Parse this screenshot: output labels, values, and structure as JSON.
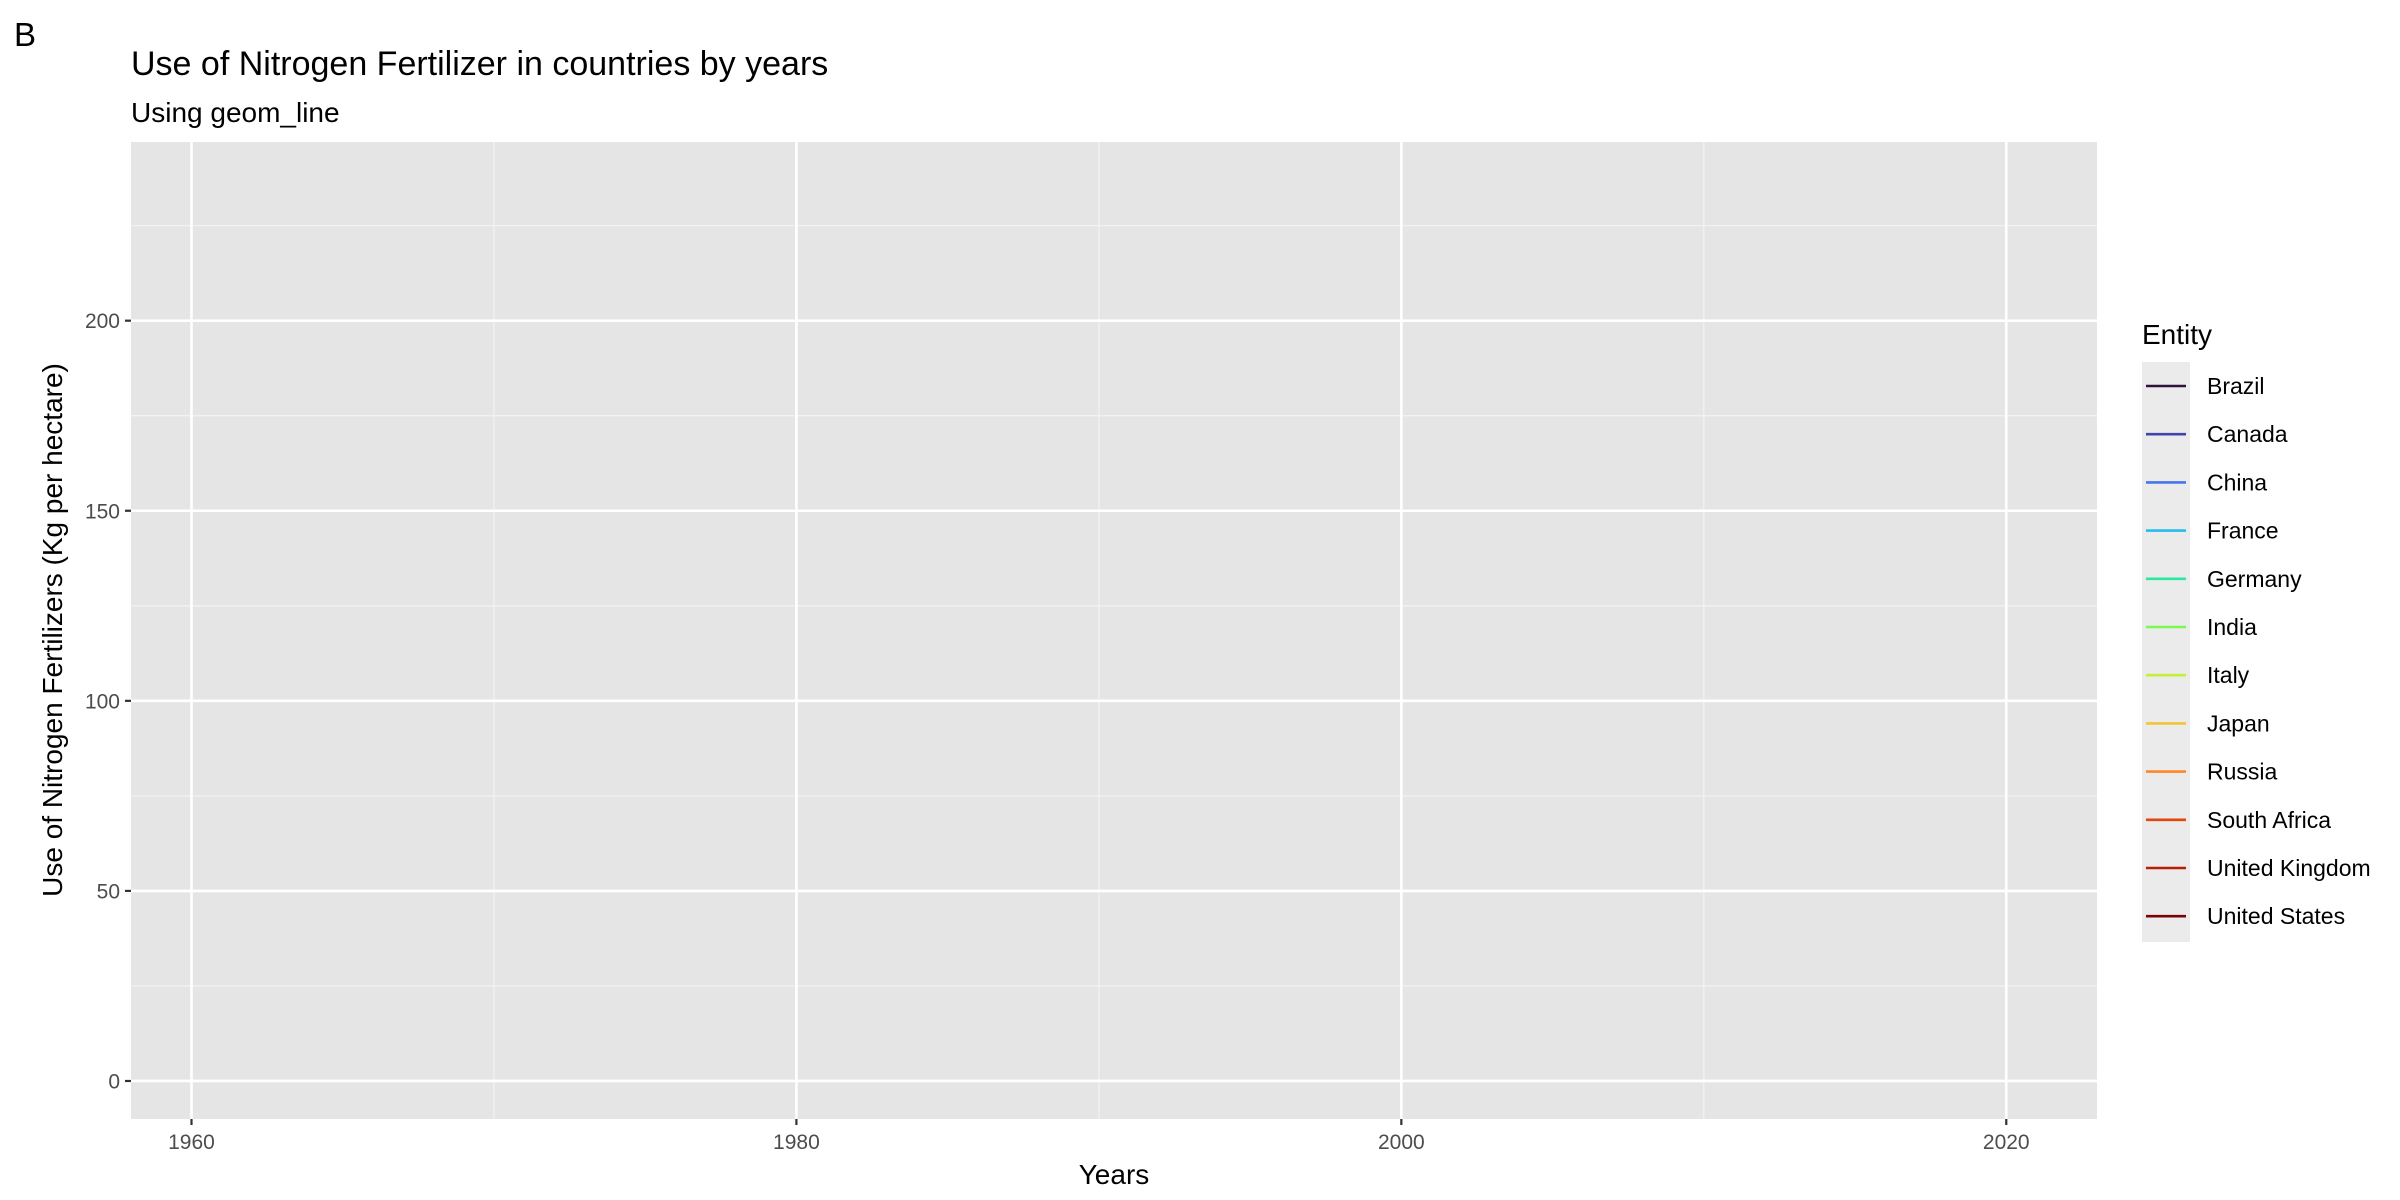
{
  "panel_label": "B",
  "chart_data": {
    "type": "line",
    "title": "Use of Nitrogen Fertilizer in countries by years",
    "subtitle": "Using geom_line",
    "xlabel": "Years",
    "ylabel": "Use of Nitrogen Fertilizers (Kg per hectare)",
    "xlim": [
      1958,
      2023
    ],
    "ylim": [
      -10,
      247
    ],
    "x_ticks": [
      1960,
      1980,
      2000,
      2020
    ],
    "y_ticks": [
      0,
      50,
      100,
      150,
      200
    ],
    "grid": true,
    "panel_background": "#e5e5e5",
    "legend": {
      "title": "Entity",
      "placement": "right"
    },
    "series": [
      {
        "name": "Brazil",
        "color": "#30123b",
        "points": []
      },
      {
        "name": "Canada",
        "color": "#4145ab",
        "points": []
      },
      {
        "name": "China",
        "color": "#4675ed",
        "points": []
      },
      {
        "name": "France",
        "color": "#28bceb",
        "points": []
      },
      {
        "name": "Germany",
        "color": "#2ae8a0",
        "points": []
      },
      {
        "name": "India",
        "color": "#7cf853",
        "points": []
      },
      {
        "name": "Italy",
        "color": "#c2ef34",
        "points": []
      },
      {
        "name": "Japan",
        "color": "#f2c535",
        "points": []
      },
      {
        "name": "Russia",
        "color": "#fe8829",
        "points": []
      },
      {
        "name": "South Africa",
        "color": "#e4460a",
        "points": []
      },
      {
        "name": "United Kingdom",
        "color": "#b91d02",
        "points": []
      },
      {
        "name": "United States",
        "color": "#7a0403",
        "points": []
      }
    ]
  }
}
